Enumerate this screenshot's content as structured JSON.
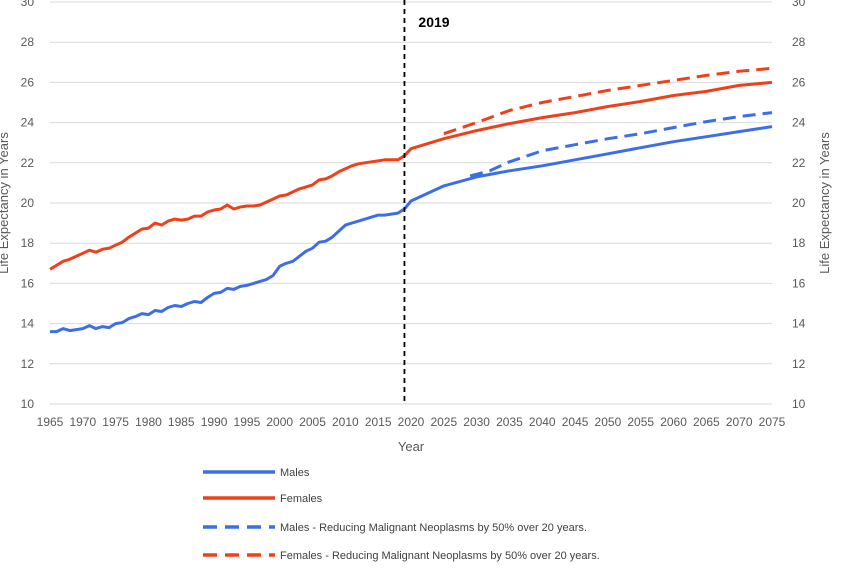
{
  "chart_data": {
    "type": "line",
    "title": "",
    "xlabel": "Year",
    "ylabel": "Life Expectancy in Years",
    "y2label": "Life Expectancy in Years",
    "xlim": [
      1965,
      2075
    ],
    "ylim": [
      10,
      30
    ],
    "x_ticks": [
      "1965",
      "1970",
      "1975",
      "1980",
      "1985",
      "1990",
      "1995",
      "2000",
      "2005",
      "2010",
      "2015",
      "2020",
      "2025",
      "2030",
      "2035",
      "2040",
      "2045",
      "2050",
      "2055",
      "2060",
      "2065",
      "2070",
      "2075"
    ],
    "y_ticks": [
      "10",
      "12",
      "14",
      "16",
      "18",
      "20",
      "22",
      "24",
      "26",
      "28",
      "30"
    ],
    "grid": "horizontal",
    "legend_position": "bottom",
    "annotation": {
      "label": "2019",
      "x": 2019,
      "style": "dashed"
    },
    "colors": {
      "males": "#3c6ee8",
      "females": "#f0401a",
      "marker_line": "#000000",
      "grid": "#d9d9d9"
    },
    "series": [
      {
        "name": "Males",
        "style": "solid",
        "points": [
          [
            1965,
            13.6
          ],
          [
            1966,
            13.6
          ],
          [
            1967,
            13.75
          ],
          [
            1968,
            13.65
          ],
          [
            1969,
            13.7
          ],
          [
            1970,
            13.75
          ],
          [
            1971,
            13.9
          ],
          [
            1972,
            13.75
          ],
          [
            1973,
            13.85
          ],
          [
            1974,
            13.8
          ],
          [
            1975,
            14.0
          ],
          [
            1976,
            14.05
          ],
          [
            1977,
            14.25
          ],
          [
            1978,
            14.35
          ],
          [
            1979,
            14.5
          ],
          [
            1980,
            14.45
          ],
          [
            1981,
            14.65
          ],
          [
            1982,
            14.6
          ],
          [
            1983,
            14.8
          ],
          [
            1984,
            14.9
          ],
          [
            1985,
            14.85
          ],
          [
            1986,
            15.0
          ],
          [
            1987,
            15.1
          ],
          [
            1988,
            15.05
          ],
          [
            1989,
            15.3
          ],
          [
            1990,
            15.5
          ],
          [
            1991,
            15.55
          ],
          [
            1992,
            15.75
          ],
          [
            1993,
            15.7
          ],
          [
            1994,
            15.85
          ],
          [
            1995,
            15.9
          ],
          [
            1996,
            16.0
          ],
          [
            1997,
            16.1
          ],
          [
            1998,
            16.2
          ],
          [
            1999,
            16.4
          ],
          [
            2000,
            16.85
          ],
          [
            2001,
            17.0
          ],
          [
            2002,
            17.1
          ],
          [
            2003,
            17.35
          ],
          [
            2004,
            17.6
          ],
          [
            2005,
            17.75
          ],
          [
            2006,
            18.05
          ],
          [
            2007,
            18.1
          ],
          [
            2008,
            18.3
          ],
          [
            2009,
            18.6
          ],
          [
            2010,
            18.9
          ],
          [
            2011,
            19.0
          ],
          [
            2012,
            19.1
          ],
          [
            2013,
            19.2
          ],
          [
            2014,
            19.3
          ],
          [
            2015,
            19.4
          ],
          [
            2016,
            19.4
          ],
          [
            2017,
            19.45
          ],
          [
            2018,
            19.5
          ],
          [
            2019,
            19.7
          ],
          [
            2020,
            20.1
          ],
          [
            2025,
            20.85
          ],
          [
            2030,
            21.3
          ],
          [
            2035,
            21.6
          ],
          [
            2040,
            21.85
          ],
          [
            2045,
            22.15
          ],
          [
            2050,
            22.45
          ],
          [
            2055,
            22.75
          ],
          [
            2060,
            23.05
          ],
          [
            2065,
            23.3
          ],
          [
            2070,
            23.55
          ],
          [
            2075,
            23.8
          ]
        ]
      },
      {
        "name": "Females",
        "style": "solid",
        "points": [
          [
            1965,
            16.7
          ],
          [
            1966,
            16.9
          ],
          [
            1967,
            17.1
          ],
          [
            1968,
            17.2
          ],
          [
            1969,
            17.35
          ],
          [
            1970,
            17.5
          ],
          [
            1971,
            17.65
          ],
          [
            1972,
            17.55
          ],
          [
            1973,
            17.7
          ],
          [
            1974,
            17.75
          ],
          [
            1975,
            17.9
          ],
          [
            1976,
            18.05
          ],
          [
            1977,
            18.3
          ],
          [
            1978,
            18.5
          ],
          [
            1979,
            18.7
          ],
          [
            1980,
            18.75
          ],
          [
            1981,
            19.0
          ],
          [
            1982,
            18.9
          ],
          [
            1983,
            19.1
          ],
          [
            1984,
            19.2
          ],
          [
            1985,
            19.15
          ],
          [
            1986,
            19.2
          ],
          [
            1987,
            19.35
          ],
          [
            1988,
            19.35
          ],
          [
            1989,
            19.55
          ],
          [
            1990,
            19.65
          ],
          [
            1991,
            19.7
          ],
          [
            1992,
            19.9
          ],
          [
            1993,
            19.7
          ],
          [
            1994,
            19.8
          ],
          [
            1995,
            19.85
          ],
          [
            1996,
            19.85
          ],
          [
            1997,
            19.9
          ],
          [
            1998,
            20.05
          ],
          [
            1999,
            20.2
          ],
          [
            2000,
            20.35
          ],
          [
            2001,
            20.4
          ],
          [
            2002,
            20.55
          ],
          [
            2003,
            20.7
          ],
          [
            2004,
            20.8
          ],
          [
            2005,
            20.9
          ],
          [
            2006,
            21.15
          ],
          [
            2007,
            21.2
          ],
          [
            2008,
            21.35
          ],
          [
            2009,
            21.55
          ],
          [
            2010,
            21.7
          ],
          [
            2011,
            21.85
          ],
          [
            2012,
            21.95
          ],
          [
            2013,
            22.0
          ],
          [
            2014,
            22.05
          ],
          [
            2015,
            22.1
          ],
          [
            2016,
            22.15
          ],
          [
            2017,
            22.15
          ],
          [
            2018,
            22.15
          ],
          [
            2019,
            22.35
          ],
          [
            2020,
            22.7
          ],
          [
            2025,
            23.2
          ],
          [
            2030,
            23.6
          ],
          [
            2035,
            23.95
          ],
          [
            2040,
            24.25
          ],
          [
            2045,
            24.5
          ],
          [
            2050,
            24.8
          ],
          [
            2055,
            25.05
          ],
          [
            2060,
            25.35
          ],
          [
            2065,
            25.55
          ],
          [
            2070,
            25.85
          ],
          [
            2075,
            26.0
          ]
        ]
      },
      {
        "name": "Males - Reducing Malignant Neoplasms by 50% over 20 years.",
        "style": "dashed",
        "points": [
          [
            2029,
            21.35
          ],
          [
            2032,
            21.6
          ],
          [
            2035,
            22.05
          ],
          [
            2040,
            22.6
          ],
          [
            2045,
            22.9
          ],
          [
            2050,
            23.2
          ],
          [
            2055,
            23.45
          ],
          [
            2060,
            23.75
          ],
          [
            2065,
            24.05
          ],
          [
            2070,
            24.3
          ],
          [
            2075,
            24.5
          ]
        ]
      },
      {
        "name": "Females -  Reducing Malignant Neoplasms by 50% over 20 years.",
        "style": "dashed",
        "points": [
          [
            2025,
            23.45
          ],
          [
            2030,
            24.0
          ],
          [
            2035,
            24.6
          ],
          [
            2040,
            25.0
          ],
          [
            2045,
            25.3
          ],
          [
            2050,
            25.6
          ],
          [
            2055,
            25.85
          ],
          [
            2060,
            26.1
          ],
          [
            2065,
            26.35
          ],
          [
            2070,
            26.55
          ],
          [
            2075,
            26.7
          ]
        ]
      }
    ]
  }
}
